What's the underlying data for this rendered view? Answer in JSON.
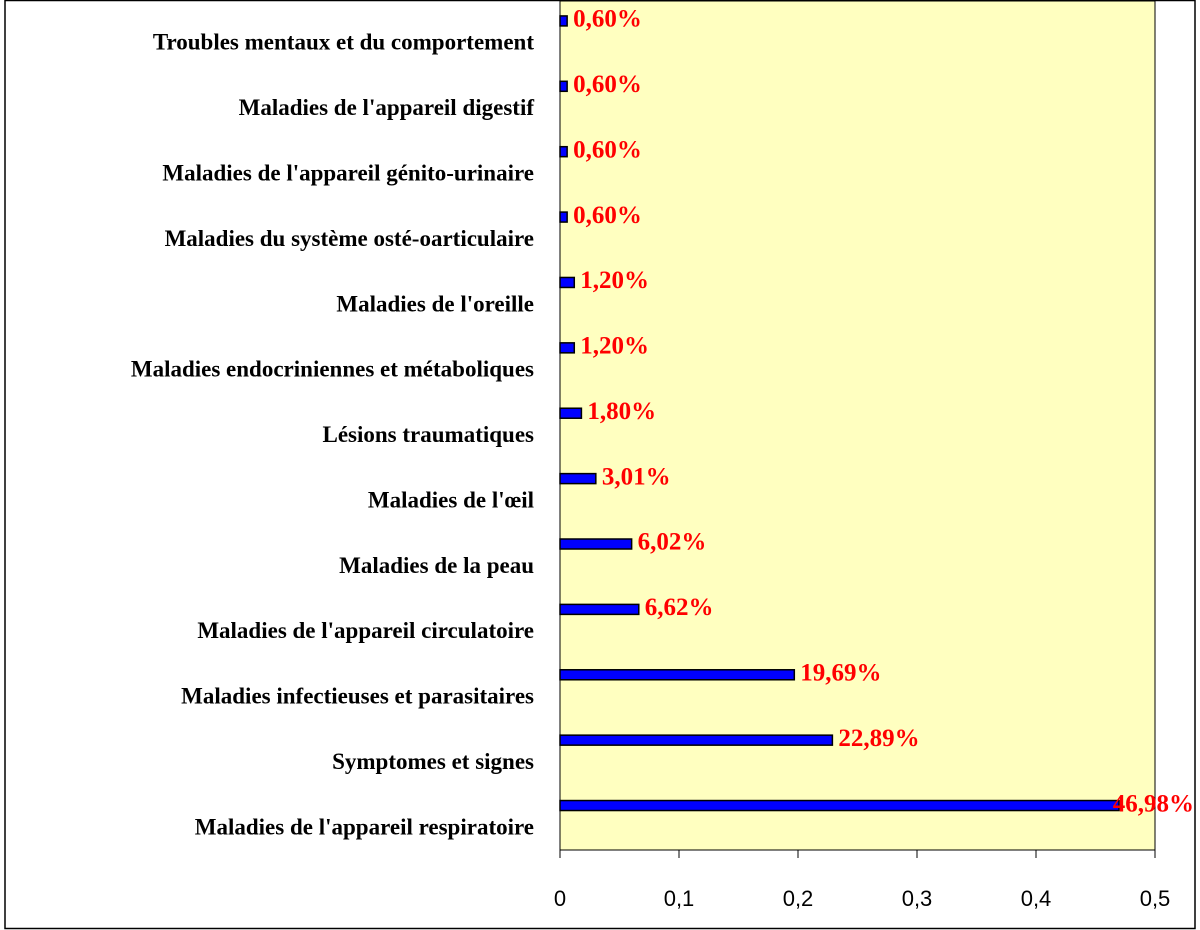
{
  "chart_data": {
    "type": "bar",
    "orientation": "horizontal",
    "categories": [
      "Troubles mentaux et du comportement",
      "Maladies de l'appareil digestif",
      "Maladies de l'appareil génito-urinaire",
      "Maladies du système osté-oarticulaire",
      "Maladies de l'oreille",
      "Maladies endocriniennes et métaboliques",
      "Lésions traumatiques",
      "Maladies de l'œil",
      "Maladies de la peau",
      "Maladies de l'appareil circulatoire",
      "Maladies infectieuses et parasitaires",
      "Symptomes et signes",
      "Maladies de l'appareil respiratoire"
    ],
    "values": [
      0.006,
      0.006,
      0.006,
      0.006,
      0.012,
      0.012,
      0.018,
      0.0301,
      0.0602,
      0.0662,
      0.1969,
      0.2289,
      0.4698
    ],
    "value_labels": [
      "0,60%",
      "0,60%",
      "0,60%",
      "0,60%",
      "1,20%",
      "1,20%",
      "1,80%",
      "3,01%",
      "6,02%",
      "6,62%",
      "19,69%",
      "22,89%",
      "46,98%"
    ],
    "color": "#0000ff",
    "plot_background": "#ffffc0",
    "value_label_color": "#ff0000",
    "xlim": [
      0,
      0.5
    ],
    "xticks": [
      0,
      {
        "value": 0.1,
        "label": "0,1"
      },
      {
        "value": 0.2,
        "label": "0,2"
      },
      {
        "value": 0.3,
        "label": "0,3"
      },
      {
        "value": 0.4,
        "label": "0,4"
      },
      {
        "value": 0.5,
        "label": "0,5"
      }
    ]
  }
}
